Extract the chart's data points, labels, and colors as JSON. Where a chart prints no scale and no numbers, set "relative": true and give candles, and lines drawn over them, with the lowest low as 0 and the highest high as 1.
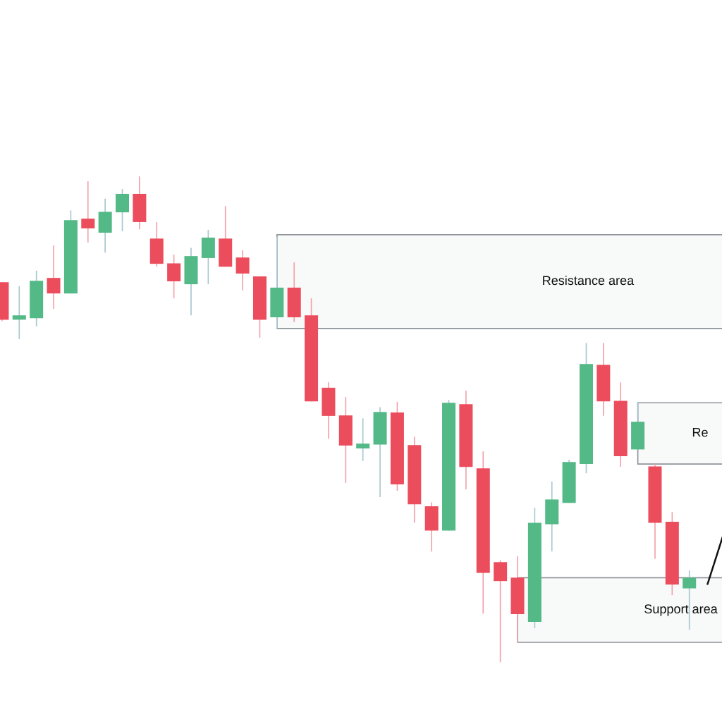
{
  "chart_data": {
    "type": "candlestick",
    "relative": true,
    "categories": [
      null,
      null,
      null,
      null,
      null,
      null,
      null,
      null,
      null,
      null,
      null,
      null,
      null,
      null,
      null,
      null,
      null,
      null,
      null,
      null,
      null,
      null,
      null,
      null,
      null,
      null,
      null,
      null,
      null,
      null,
      null,
      null,
      null,
      null,
      null,
      null,
      null,
      null,
      null,
      null,
      null
    ],
    "colors": [
      "#eb4d5c",
      "#53b987",
      "#53b987",
      "#eb4d5c",
      "#53b987",
      "#eb4d5c",
      "#53b987",
      "#53b987",
      "#eb4d5c",
      "#eb4d5c",
      "#eb4d5c",
      "#53b987",
      "#53b987",
      "#eb4d5c",
      "#eb4d5c",
      "#eb4d5c",
      "#53b987",
      "#eb4d5c",
      "#eb4d5c",
      "#eb4d5c",
      "#eb4d5c",
      "#53b987",
      "#53b987",
      "#eb4d5c",
      "#eb4d5c",
      "#eb4d5c",
      "#53b987",
      "#eb4d5c",
      "#eb4d5c",
      "#eb4d5c",
      "#eb4d5c",
      "#53b987",
      "#53b987",
      "#53b987",
      "#53b987",
      "#eb4d5c",
      "#eb4d5c",
      "#53b987",
      "#eb4d5c",
      "#eb4d5c",
      "#53b987"
    ],
    "ohlc": [
      [
        0.782,
        0.782,
        0.702,
        0.705
      ],
      [
        0.705,
        0.774,
        0.665,
        0.714
      ],
      [
        0.708,
        0.806,
        0.691,
        0.785
      ],
      [
        0.791,
        0.858,
        0.727,
        0.759
      ],
      [
        0.759,
        0.93,
        0.759,
        0.91
      ],
      [
        0.913,
        0.99,
        0.864,
        0.893
      ],
      [
        0.884,
        0.954,
        0.843,
        0.927
      ],
      [
        0.926,
        0.974,
        0.887,
        0.964
      ],
      [
        0.964,
        1.0,
        0.891,
        0.906
      ],
      [
        0.872,
        0.906,
        0.814,
        0.82
      ],
      [
        0.821,
        0.839,
        0.749,
        0.784
      ],
      [
        0.778,
        0.853,
        0.714,
        0.836
      ],
      [
        0.832,
        0.89,
        0.778,
        0.874
      ],
      [
        0.872,
        0.939,
        0.814,
        0.814
      ],
      [
        0.833,
        0.848,
        0.765,
        0.8
      ],
      [
        0.794,
        0.794,
        0.668,
        0.705
      ],
      [
        0.71,
        0.875,
        0.687,
        0.771
      ],
      [
        0.771,
        0.823,
        0.7,
        0.71
      ],
      [
        0.714,
        0.749,
        0.537,
        0.537
      ],
      [
        0.565,
        0.576,
        0.46,
        0.507
      ],
      [
        0.508,
        0.546,
        0.369,
        0.446
      ],
      [
        0.44,
        0.502,
        0.414,
        0.45
      ],
      [
        0.448,
        0.525,
        0.34,
        0.515
      ],
      [
        0.514,
        0.536,
        0.353,
        0.366
      ],
      [
        0.447,
        0.464,
        0.287,
        0.325
      ],
      [
        0.321,
        0.329,
        0.228,
        0.271
      ],
      [
        0.271,
        0.54,
        0.271,
        0.534
      ],
      [
        0.531,
        0.559,
        0.356,
        0.402
      ],
      [
        0.399,
        0.434,
        0.1,
        0.184
      ],
      [
        0.206,
        0.21,
        0.0,
        0.167
      ],
      [
        0.174,
        0.218,
        0.041,
        0.099
      ],
      [
        0.083,
        0.318,
        0.07,
        0.287
      ],
      [
        0.284,
        0.372,
        0.228,
        0.335
      ],
      [
        0.328,
        0.417,
        0.328,
        0.412
      ],
      [
        0.408,
        0.657,
        0.389,
        0.614
      ],
      [
        0.612,
        0.657,
        0.507,
        0.537
      ],
      [
        0.538,
        0.576,
        0.402,
        0.424
      ],
      [
        0.438,
        0.536,
        0.438,
        0.495
      ],
      [
        0.403,
        0.408,
        0.213,
        0.287
      ],
      [
        0.289,
        0.309,
        0.138,
        0.16
      ],
      [
        0.152,
        0.189,
        0.067,
        0.174
      ]
    ],
    "bands": [
      {
        "axis": "y",
        "from": 0.687,
        "to": 0.88,
        "label": "Resistance area",
        "color": "#8e9499"
      },
      {
        "axis": "y",
        "from": 0.408,
        "to": 0.534,
        "label": "Re",
        "color": "#8e9499"
      },
      {
        "axis": "y",
        "from": 0.041,
        "to": 0.174,
        "label": "Support area",
        "color": "#8e9499"
      }
    ]
  }
}
